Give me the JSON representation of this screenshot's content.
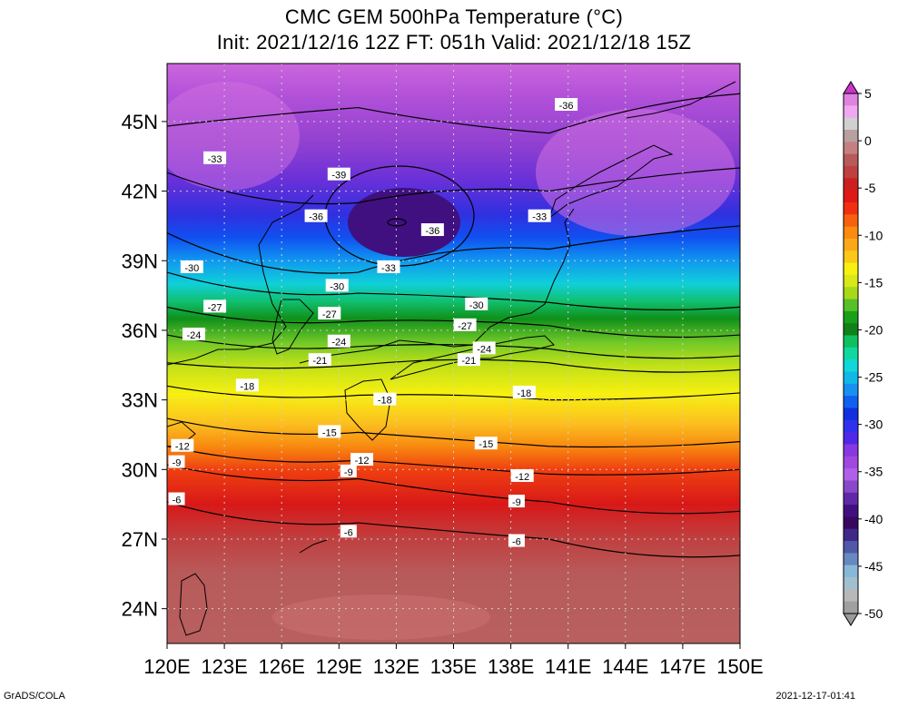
{
  "title": {
    "line1": "CMC GEM 500hPa Temperature (°C)",
    "line2": "Init: 2021/12/16 12Z  FT: 051h  Valid: 2021/12/18 15Z"
  },
  "map": {
    "lon_range": [
      120,
      150
    ],
    "lat_range": [
      22.5,
      47.5
    ],
    "lon_ticks": [
      "120E",
      "123E",
      "126E",
      "129E",
      "132E",
      "135E",
      "138E",
      "141E",
      "144E",
      "147E",
      "150E"
    ],
    "lat_ticks": [
      "24N",
      "27N",
      "30N",
      "33N",
      "36N",
      "39N",
      "42N",
      "45N"
    ],
    "variable": "500hPa Temperature",
    "contour_interval": 3,
    "contour_labels": [
      {
        "value": "-36",
        "lon": 140.9,
        "lat": 45.7
      },
      {
        "value": "-33",
        "lon": 122.5,
        "lat": 43.4
      },
      {
        "value": "-39",
        "lon": 129.0,
        "lat": 42.7
      },
      {
        "value": "-36",
        "lon": 127.8,
        "lat": 40.9
      },
      {
        "value": "-36",
        "lon": 133.9,
        "lat": 40.3
      },
      {
        "value": "-33",
        "lon": 139.5,
        "lat": 40.9
      },
      {
        "value": "-33",
        "lon": 131.6,
        "lat": 38.7
      },
      {
        "value": "-30",
        "lon": 121.3,
        "lat": 38.7
      },
      {
        "value": "-30",
        "lon": 128.9,
        "lat": 37.9
      },
      {
        "value": "-30",
        "lon": 136.2,
        "lat": 37.1
      },
      {
        "value": "-27",
        "lon": 122.5,
        "lat": 37.0
      },
      {
        "value": "-27",
        "lon": 128.5,
        "lat": 36.7
      },
      {
        "value": "-27",
        "lon": 135.6,
        "lat": 36.2
      },
      {
        "value": "-24",
        "lon": 121.4,
        "lat": 35.8
      },
      {
        "value": "-24",
        "lon": 129.0,
        "lat": 35.5
      },
      {
        "value": "-24",
        "lon": 136.6,
        "lat": 35.2
      },
      {
        "value": "-21",
        "lon": 128.0,
        "lat": 34.7
      },
      {
        "value": "-21",
        "lon": 135.8,
        "lat": 34.7
      },
      {
        "value": "-18",
        "lon": 124.2,
        "lat": 33.6
      },
      {
        "value": "-18",
        "lon": 131.4,
        "lat": 33.0
      },
      {
        "value": "-18",
        "lon": 138.7,
        "lat": 33.3
      },
      {
        "value": "-15",
        "lon": 128.5,
        "lat": 31.6
      },
      {
        "value": "-15",
        "lon": 136.7,
        "lat": 31.1
      },
      {
        "value": "-12",
        "lon": 120.8,
        "lat": 31.0
      },
      {
        "value": "-12",
        "lon": 130.2,
        "lat": 30.4
      },
      {
        "value": "-12",
        "lon": 138.6,
        "lat": 29.7
      },
      {
        "value": "-9",
        "lon": 120.5,
        "lat": 30.3
      },
      {
        "value": "-9",
        "lon": 129.5,
        "lat": 29.9
      },
      {
        "value": "-9",
        "lon": 138.3,
        "lat": 28.6
      },
      {
        "value": "-6",
        "lon": 120.5,
        "lat": 28.7
      },
      {
        "value": "-6",
        "lon": 129.5,
        "lat": 27.3
      },
      {
        "value": "-6",
        "lon": 138.3,
        "lat": 26.9
      }
    ]
  },
  "colorbar": {
    "labels": [
      "5",
      "0",
      "-5",
      "-10",
      "-15",
      "-20",
      "-25",
      "-30",
      "-35",
      "-40",
      "-45",
      "-50"
    ],
    "min": -50,
    "max": 5,
    "arrow_top_color": "#cc33cc",
    "arrow_bottom_color": "#9a9a9a",
    "colors_top_to_bottom": [
      "#e083e0",
      "#f0a8f0",
      "#d0d0d0",
      "#b8a0a0",
      "#c48080",
      "#b85a5a",
      "#c04040",
      "#cc2020",
      "#e01818",
      "#f03010",
      "#f86010",
      "#fa8a10",
      "#fba818",
      "#fbc818",
      "#f8f010",
      "#d8e818",
      "#a8d818",
      "#58c028",
      "#18a018",
      "#108018",
      "#10c060",
      "#10d8a0",
      "#10d8d8",
      "#10b8e8",
      "#1890f0",
      "#1060f0",
      "#1030e0",
      "#3030f0",
      "#5028e8",
      "#8838e0",
      "#a048e0",
      "#b060e8",
      "#8848c8",
      "#6028a8",
      "#401080",
      "#380860",
      "#402888",
      "#5058a8",
      "#6888c0",
      "#88b8d8",
      "#a0c0d0",
      "#b8b8b8",
      "#a0a0a0"
    ]
  },
  "credits": {
    "left": "GrADS/COLA",
    "right": "2021-12-17-01:41"
  }
}
